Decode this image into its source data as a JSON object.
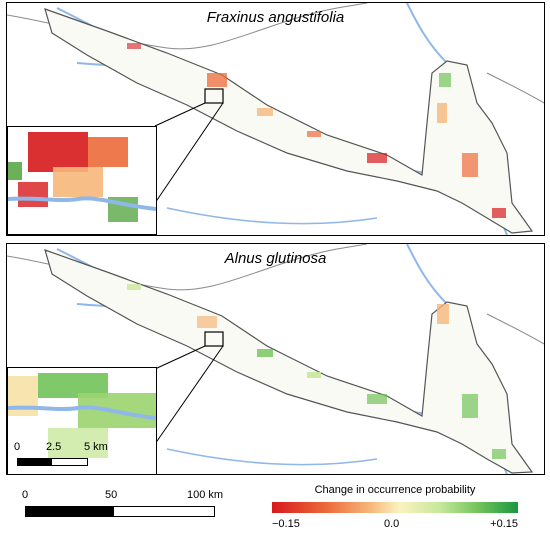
{
  "panels": [
    {
      "species": "Fraxinus angustifolia",
      "pattern": "decrease",
      "inset_colors": [
        "#d7191c",
        "#ec6a3a",
        "#f6b77a",
        "#5aa845"
      ]
    },
    {
      "species": "Alnus glutinosa",
      "pattern": "increase",
      "inset_colors": [
        "#72c35a",
        "#9bd46e",
        "#c8e89c",
        "#f6dd9a"
      ]
    }
  ],
  "inset_scale": {
    "labels": [
      "0",
      "2.5",
      "5 km"
    ]
  },
  "main_scale": {
    "labels": [
      "0",
      "50",
      "100 km"
    ]
  },
  "legend": {
    "title": "Change in occurrence probability",
    "ticks": [
      "−0.15",
      "0.0",
      "+0.15"
    ],
    "colors": [
      "#d7191c",
      "#f6b77a",
      "#fbf3c0",
      "#72c35a",
      "#1a9641"
    ]
  },
  "map_colors": {
    "water": "#8fb7ea",
    "border": "#8a8a8a",
    "study_area": "#555555"
  }
}
